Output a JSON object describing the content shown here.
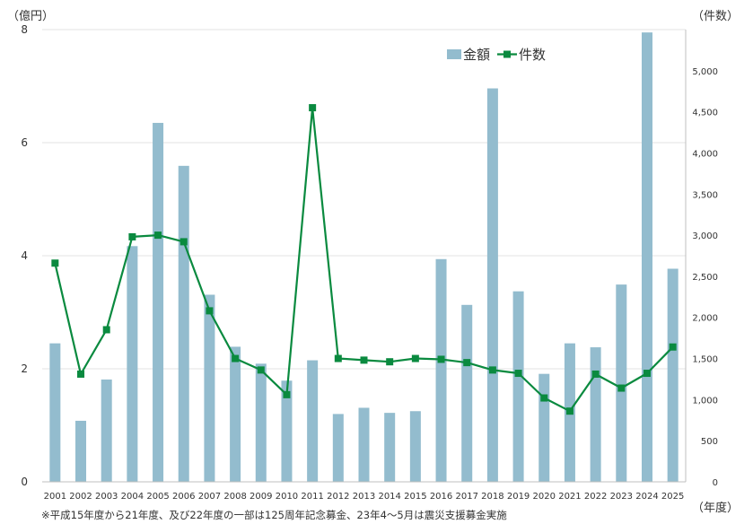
{
  "chart_data": {
    "type": "bar+line",
    "categories": [
      "2001",
      "2002",
      "2003",
      "2004",
      "2005",
      "2006",
      "2007",
      "2008",
      "2009",
      "2010",
      "2011",
      "2012",
      "2013",
      "2014",
      "2015",
      "2016",
      "2017",
      "2018",
      "2019",
      "2020",
      "2021",
      "2022",
      "2023",
      "2024",
      "2025"
    ],
    "series": [
      {
        "name": "金額",
        "type": "bar",
        "axis": "left",
        "color": "#93BCCE",
        "values": [
          2.45,
          1.08,
          1.81,
          4.17,
          6.35,
          5.59,
          3.31,
          2.39,
          2.09,
          1.79,
          2.15,
          1.2,
          1.31,
          1.22,
          1.25,
          3.94,
          3.13,
          6.96,
          3.37,
          1.91,
          2.45,
          2.38,
          3.49,
          7.95,
          3.77
        ]
      },
      {
        "name": "件数",
        "type": "line",
        "axis": "right",
        "color": "#0A8A3F",
        "values": [
          2660,
          1310,
          1850,
          2980,
          3000,
          2920,
          2080,
          1500,
          1360,
          1060,
          4550,
          1500,
          1480,
          1460,
          1500,
          1490,
          1450,
          1360,
          1320,
          1020,
          860,
          1310,
          1140,
          1320,
          1640
        ]
      }
    ],
    "left_axis": {
      "unit_label": "（億円）",
      "ylim": [
        0,
        8
      ],
      "ticks": [
        0,
        2,
        4,
        6,
        8
      ],
      "tick_labels": [
        "0",
        "2",
        "4",
        "6",
        "8"
      ]
    },
    "right_axis": {
      "unit_label": "（件数）",
      "ylim": [
        0,
        5500
      ],
      "ticks": [
        0,
        500,
        1000,
        1500,
        2000,
        2500,
        3000,
        3500,
        4000,
        4500,
        5000
      ],
      "tick_labels": [
        "0",
        "500",
        "1,000",
        "1,500",
        "2,000",
        "2,500",
        "3,000",
        "3,500",
        "4,000",
        "4,500",
        "5,000"
      ]
    },
    "xlabel": "（年度）",
    "legend": {
      "position": "top-right",
      "items": [
        "金額",
        "件数"
      ]
    },
    "grid": {
      "horizontal": true,
      "vertical": false
    },
    "footnote": "※平成15年度から21年度、及び22年度の一部は125周年記念募金、23年4～5月は震災支援募金実施"
  }
}
